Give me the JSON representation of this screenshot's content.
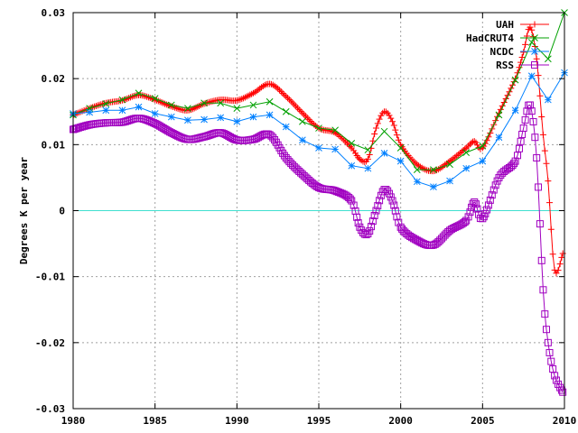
{
  "chart_data": {
    "type": "line",
    "title": "",
    "xlabel": "",
    "ylabel": "Degrees K per year",
    "xlim": [
      1980,
      2010
    ],
    "ylim": [
      -0.03,
      0.03
    ],
    "grid": true,
    "legend_position": "top-right",
    "x_ticks": [
      1980,
      1985,
      1990,
      1995,
      2000,
      2005,
      2010
    ],
    "x_tick_labels": [
      "1980",
      "1985",
      "1990",
      "1995",
      "2000",
      "2005",
      "2010"
    ],
    "y_ticks": [
      -0.03,
      -0.02,
      -0.01,
      0,
      0.01,
      0.02,
      0.03
    ],
    "y_tick_labels": [
      "-0.03",
      "-0.02",
      "-0.01",
      "0",
      "0.01",
      "0.02",
      "0.03"
    ],
    "zero_line_color": "#40e0d0",
    "series": [
      {
        "name": "UAH",
        "color": "#ff0000",
        "marker": "plus",
        "sample_step": 0.1,
        "x": [
          1980,
          1981,
          1982,
          1983,
          1984,
          1985,
          1986,
          1987,
          1988,
          1989,
          1990,
          1991,
          1992,
          1993,
          1994,
          1995,
          1996,
          1997,
          1997.5,
          1998,
          1998.5,
          1999,
          1999.5,
          2000,
          2001,
          2002,
          2003,
          2004,
          2004.5,
          2005,
          2006,
          2007,
          2007.5,
          2007.9,
          2008.3,
          2008.7,
          2009,
          2009.4,
          2009.9
        ],
        "y": [
          0.0145,
          0.0155,
          0.0163,
          0.0167,
          0.0175,
          0.0168,
          0.0158,
          0.0152,
          0.0162,
          0.0168,
          0.0167,
          0.0178,
          0.0192,
          0.0173,
          0.0148,
          0.0125,
          0.0118,
          0.0095,
          0.0078,
          0.0078,
          0.0125,
          0.015,
          0.0135,
          0.01,
          0.007,
          0.006,
          0.0075,
          0.0095,
          0.0105,
          0.0095,
          0.0148,
          0.02,
          0.024,
          0.0278,
          0.023,
          0.0115,
          0.0045,
          -0.009,
          -0.0065
        ]
      },
      {
        "name": "HadCRUT4",
        "color": "#00a000",
        "marker": "cross",
        "x": [
          1980,
          1981,
          1982,
          1983,
          1984,
          1985,
          1986,
          1987,
          1988,
          1989,
          1990,
          1991,
          1992,
          1993,
          1994,
          1995,
          1996,
          1997,
          1998,
          1999,
          2000,
          2001,
          2002,
          2003,
          2004,
          2005,
          2006,
          2007,
          2008,
          2009,
          2010
        ],
        "y": [
          0.0145,
          0.0155,
          0.0162,
          0.0168,
          0.0178,
          0.017,
          0.016,
          0.0155,
          0.0163,
          0.0163,
          0.0155,
          0.016,
          0.0165,
          0.015,
          0.0135,
          0.0125,
          0.0122,
          0.0102,
          0.0092,
          0.012,
          0.0095,
          0.0062,
          0.0062,
          0.007,
          0.0088,
          0.0098,
          0.0145,
          0.0198,
          0.0255,
          0.023,
          0.03
        ]
      },
      {
        "name": "NCDC",
        "color": "#0080ff",
        "marker": "star",
        "x": [
          1980,
          1981,
          1982,
          1983,
          1984,
          1985,
          1986,
          1987,
          1988,
          1989,
          1990,
          1991,
          1992,
          1993,
          1994,
          1995,
          1996,
          1997,
          1998,
          1999,
          2000,
          2001,
          2002,
          2003,
          2004,
          2005,
          2006,
          2007,
          2008,
          2009,
          2010
        ],
        "y": [
          0.0147,
          0.0149,
          0.0152,
          0.0152,
          0.0157,
          0.0147,
          0.0142,
          0.0137,
          0.0138,
          0.0141,
          0.0135,
          0.0142,
          0.0145,
          0.0127,
          0.0107,
          0.0095,
          0.0093,
          0.0068,
          0.0064,
          0.0087,
          0.0075,
          0.0044,
          0.0036,
          0.0045,
          0.0064,
          0.0075,
          0.0111,
          0.0152,
          0.0204,
          0.0168,
          0.0209
        ]
      },
      {
        "name": "RSS",
        "color": "#a000c0",
        "marker": "square",
        "sample_step": 0.1,
        "x": [
          1980,
          1981,
          1982,
          1983,
          1984,
          1985,
          1986,
          1987,
          1988,
          1989,
          1990,
          1991,
          1992,
          1993,
          1994,
          1995,
          1996,
          1997,
          1997.5,
          1998,
          1998.5,
          1999,
          1999.5,
          2000,
          2001,
          2002,
          2003,
          2004,
          2004.5,
          2005,
          2006,
          2007,
          2007.5,
          2007.9,
          2008.3,
          2008.7,
          2009,
          2009.4,
          2009.9
        ],
        "y": [
          0.0123,
          0.013,
          0.0133,
          0.0134,
          0.014,
          0.0132,
          0.0118,
          0.0108,
          0.0112,
          0.0118,
          0.0107,
          0.0108,
          0.0115,
          0.008,
          0.0055,
          0.0035,
          0.003,
          0.0015,
          -0.0025,
          -0.0035,
          0.0,
          0.0032,
          0.0015,
          -0.0025,
          -0.0045,
          -0.0052,
          -0.003,
          -0.0015,
          0.0013,
          -0.0012,
          0.005,
          0.0075,
          0.0125,
          0.016,
          0.008,
          -0.012,
          -0.02,
          -0.025,
          -0.0275
        ]
      }
    ]
  }
}
